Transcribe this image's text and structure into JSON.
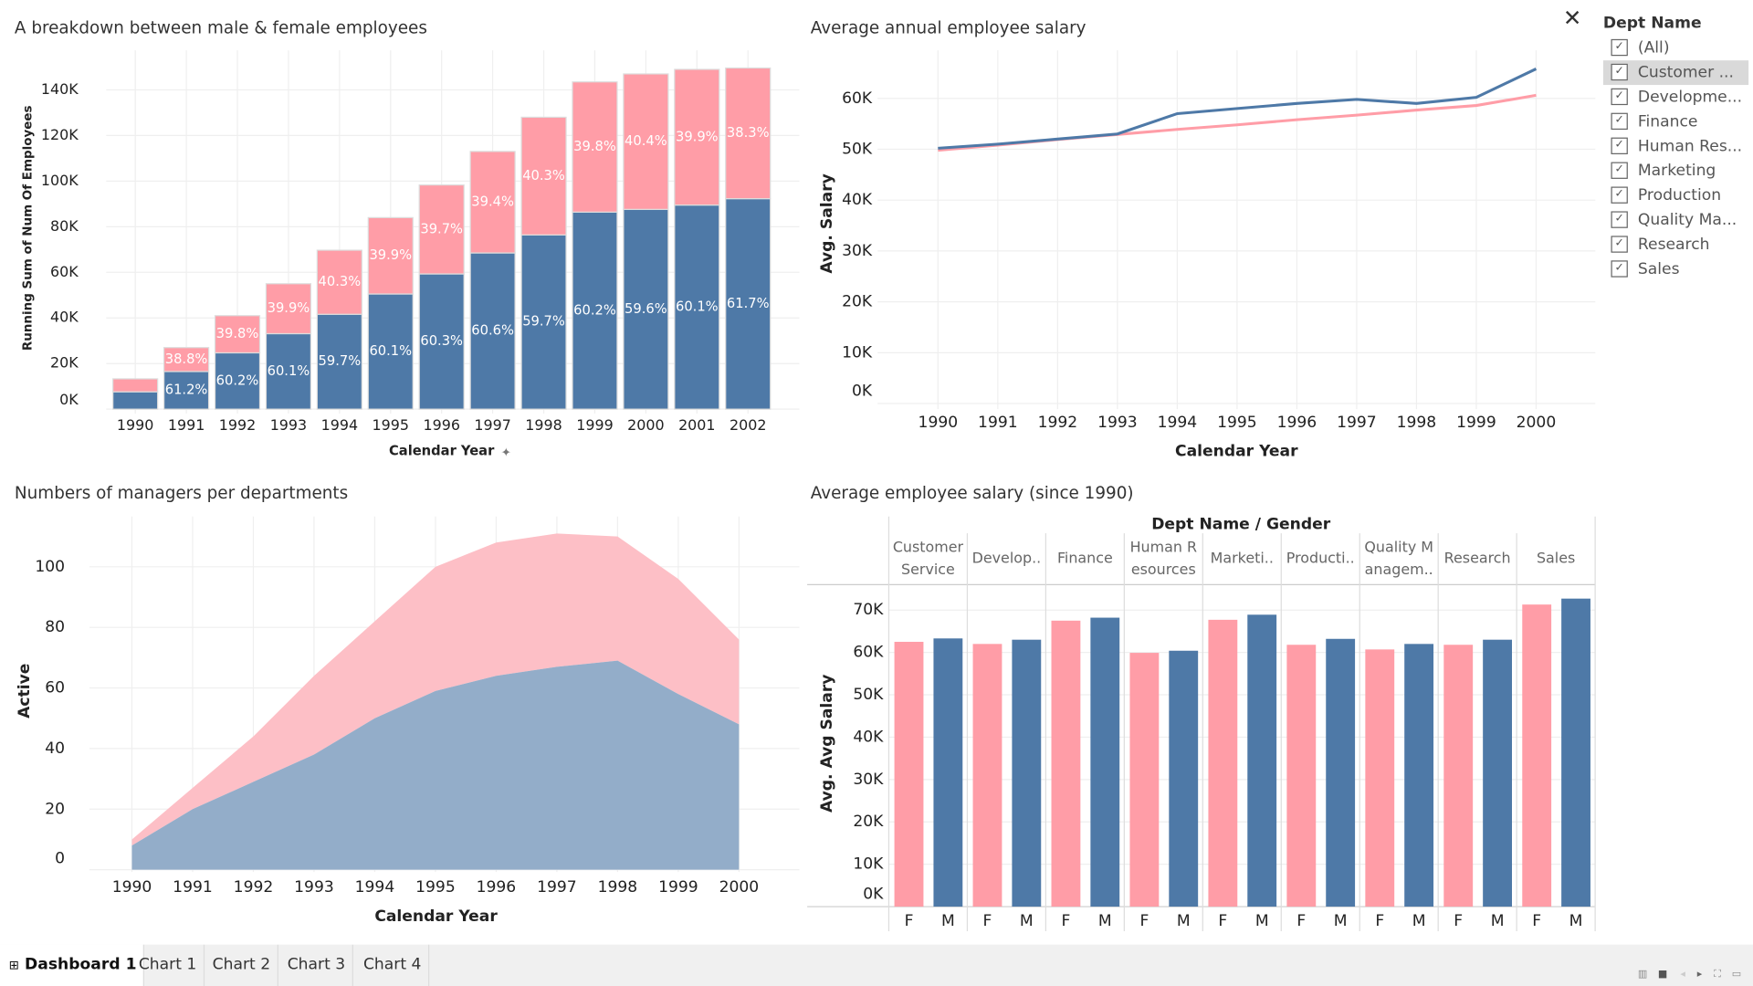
{
  "colors": {
    "male": "#4e79a7",
    "female": "#ff9da7",
    "male_area": "#93adc9",
    "female_area": "#fdbfc6"
  },
  "filter": {
    "title": "Dept Name",
    "close_icon": "close-icon",
    "items": [
      {
        "label": "(All)",
        "checked": true
      },
      {
        "label": "Customer ...",
        "checked": true,
        "highlighted": true
      },
      {
        "label": "Developme...",
        "checked": true
      },
      {
        "label": "Finance",
        "checked": true
      },
      {
        "label": "Human Res...",
        "checked": true
      },
      {
        "label": "Marketing",
        "checked": true
      },
      {
        "label": "Production",
        "checked": true
      },
      {
        "label": "Quality Ma...",
        "checked": true
      },
      {
        "label": "Research",
        "checked": true
      },
      {
        "label": "Sales",
        "checked": true
      }
    ]
  },
  "tabs": {
    "dashboard": "Dashboard 1",
    "items": [
      "Chart 1",
      "Chart 2",
      "Chart 3",
      "Chart 4"
    ]
  },
  "chart_data": [
    {
      "type": "bar",
      "stacked": true,
      "title": "A breakdown between male & female employees",
      "xlabel": "Calendar Year",
      "ylabel": "Running Sum of Num Of Employees",
      "categories": [
        "1990",
        "1991",
        "1992",
        "1993",
        "1994",
        "1995",
        "1996",
        "1997",
        "1998",
        "1999",
        "2000",
        "2001",
        "2002"
      ],
      "ylim": [
        0,
        150000
      ],
      "yticks": [
        0,
        20000,
        40000,
        60000,
        80000,
        100000,
        120000,
        140000
      ],
      "ytick_labels": [
        "0K",
        "20K",
        "40K",
        "60K",
        "80K",
        "100K",
        "120K",
        "140K"
      ],
      "series": [
        {
          "color": "#4e79a7",
          "values": [
            7600,
            16500,
            24700,
            33100,
            41600,
            50500,
            59300,
            68500,
            76400,
            86400,
            87600,
            89500,
            92300
          ],
          "labels": [
            "",
            "61.2%",
            "60.2%",
            "60.1%",
            "59.7%",
            "60.1%",
            "60.3%",
            "60.6%",
            "59.7%",
            "60.2%",
            "59.6%",
            "60.1%",
            "61.7%"
          ]
        },
        {
          "color": "#ff9da7",
          "values": [
            5700,
            10500,
            16300,
            21900,
            28100,
            33500,
            39000,
            44500,
            51600,
            57100,
            59400,
            59500,
            57300
          ],
          "labels": [
            "",
            "38.8%",
            "39.8%",
            "39.9%",
            "40.3%",
            "39.9%",
            "39.7%",
            "39.4%",
            "40.3%",
            "39.8%",
            "40.4%",
            "39.9%",
            "38.3%"
          ]
        }
      ],
      "grid": true
    },
    {
      "type": "line",
      "title": "Average annual employee salary",
      "xlabel": "Calendar Year",
      "ylabel": "Avg. Salary",
      "categories": [
        "1990",
        "1991",
        "1992",
        "1993",
        "1994",
        "1995",
        "1996",
        "1997",
        "1998",
        "1999",
        "2000"
      ],
      "ylim": [
        0,
        68000
      ],
      "yticks": [
        0,
        10000,
        20000,
        30000,
        40000,
        50000,
        60000
      ],
      "ytick_labels": [
        "0K",
        "10K",
        "20K",
        "30K",
        "40K",
        "50K",
        "60K"
      ],
      "series": [
        {
          "color": "#4e79a7",
          "values": [
            50200,
            51000,
            52000,
            53000,
            57000,
            58000,
            59000,
            59800,
            59000,
            60200,
            65800
          ]
        },
        {
          "color": "#ff9da7",
          "values": [
            49800,
            50800,
            51900,
            52900,
            53900,
            54800,
            55800,
            56700,
            57700,
            58600,
            60600
          ]
        }
      ],
      "grid": true
    },
    {
      "type": "area",
      "stacked": true,
      "title": "Numbers of managers per departments",
      "xlabel": "Calendar Year",
      "ylabel": "Active",
      "categories": [
        "1990",
        "1991",
        "1992",
        "1993",
        "1994",
        "1995",
        "1996",
        "1997",
        "1998",
        "1999",
        "2000"
      ],
      "ylim": [
        0,
        115
      ],
      "yticks": [
        0,
        20,
        40,
        60,
        80,
        100
      ],
      "ytick_labels": [
        "0",
        "20",
        "40",
        "60",
        "80",
        "100"
      ],
      "series": [
        {
          "color": "#93adc9",
          "values": [
            8,
            20,
            29,
            38,
            50,
            59,
            64,
            67,
            69,
            58,
            48
          ]
        },
        {
          "color": "#fdbfc6",
          "values": [
            2,
            7,
            15,
            26,
            32,
            41,
            44,
            44,
            41,
            38,
            28
          ]
        }
      ],
      "grid": true
    },
    {
      "type": "bar",
      "title": "Average employee salary (since 1990)",
      "header": "Dept Name  /  Gender",
      "ylabel": "Avg. Avg Salary",
      "categories": [
        [
          "Customer",
          "Service"
        ],
        [
          "Develop.."
        ],
        [
          "Finance"
        ],
        [
          "Human R",
          "esources"
        ],
        [
          "Marketi.."
        ],
        [
          "Producti.."
        ],
        [
          "Quality M",
          "anagem.."
        ],
        [
          "Research"
        ],
        [
          "Sales"
        ]
      ],
      "subcategories": [
        "F",
        "M"
      ],
      "ylim": [
        0,
        73000
      ],
      "yticks": [
        0,
        10000,
        20000,
        30000,
        40000,
        50000,
        60000,
        70000
      ],
      "ytick_labels": [
        "0K",
        "10K",
        "20K",
        "30K",
        "40K",
        "50K",
        "60K",
        "70K"
      ],
      "series": [
        {
          "color": "#ff9da7",
          "values": [
            62500,
            62000,
            67500,
            59900,
            67700,
            61800,
            60700,
            61800,
            71300
          ]
        },
        {
          "color": "#4e79a7",
          "values": [
            63300,
            63000,
            68200,
            60400,
            68900,
            63200,
            62000,
            63000,
            72700
          ]
        }
      ],
      "grid": true
    }
  ]
}
